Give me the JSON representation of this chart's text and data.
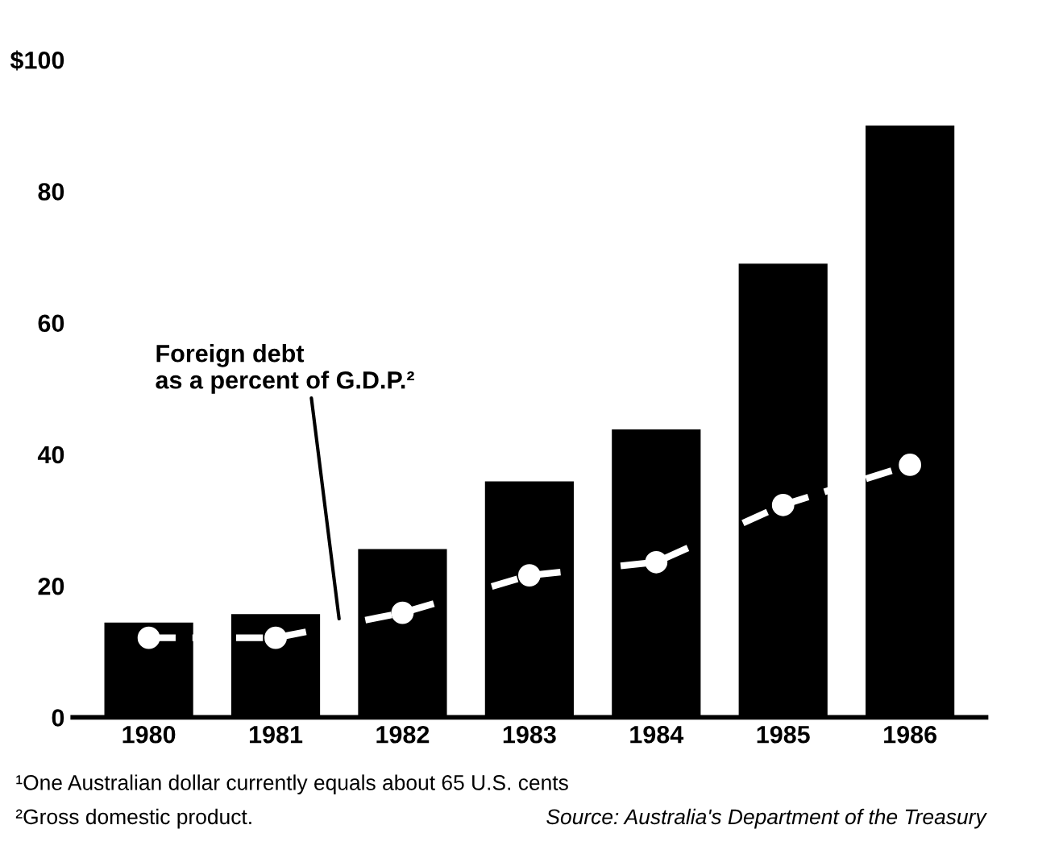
{
  "chart_data": {
    "type": "bar",
    "categories": [
      "1980",
      "1981",
      "1982",
      "1983",
      "1984",
      "1985",
      "1986"
    ],
    "series": [
      {
        "color": "#000000",
        "values": [
          14.4,
          15.7,
          25.6,
          35.9,
          43.8,
          69,
          90
        ]
      },
      {
        "type": "line",
        "name": "Foreign debt\nas a percent of G.D.P.²",
        "color": "#ffffff",
        "marker": "circle",
        "line_style": "dashed",
        "values": [
          12.1,
          12.1,
          15.9,
          21.6,
          23.6,
          32.3,
          38.4
        ]
      }
    ],
    "ylim": [
      0,
      100
    ],
    "yticks": [
      0,
      20,
      40,
      60,
      {
        "value": 80,
        "label": "80"
      },
      {
        "value": 100,
        "label": "$100"
      }
    ],
    "grid": false,
    "legend": false,
    "annotations": [
      "¹One Australian dollar currently equals about 65 U.S. cents",
      "²Gross domestic product.",
      "Source: Australia's Department of the Treasury"
    ]
  }
}
